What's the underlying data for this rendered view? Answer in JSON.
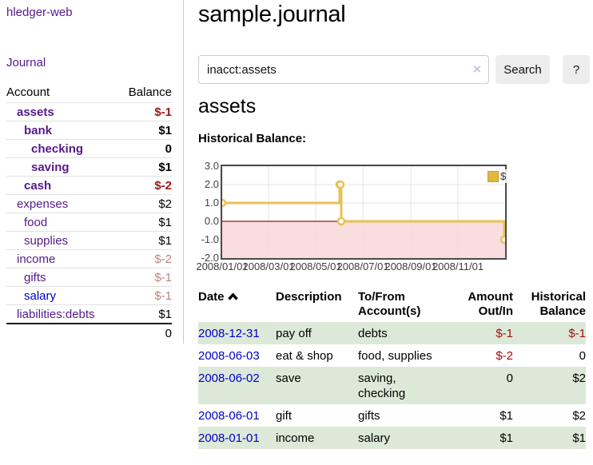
{
  "app": {
    "brand": "hledger-web",
    "nav_journal": "Journal"
  },
  "colors": {
    "link_purple": "#551a8b",
    "link_blue": "#0000cc",
    "negative_strong": "#9d1515",
    "negative_soft": "#c47e7e",
    "negative_main": "#a40f0f",
    "row_stripe_green": "#dde9d8",
    "chart_line_gold": "#e8c155"
  },
  "sidebar": {
    "header": {
      "account": "Account",
      "balance": "Balance"
    },
    "accounts": [
      {
        "name": "assets",
        "balance": "$-1",
        "depth": 0,
        "in_query": true
      },
      {
        "name": "bank",
        "balance": "$1",
        "depth": 1,
        "in_query": true
      },
      {
        "name": "checking",
        "balance": "0",
        "depth": 2,
        "in_query": true
      },
      {
        "name": "saving",
        "balance": "$1",
        "depth": 2,
        "in_query": true
      },
      {
        "name": "cash",
        "balance": "$-2",
        "depth": 1,
        "in_query": true
      },
      {
        "name": "expenses",
        "balance": "$2",
        "depth": 0,
        "in_query": false
      },
      {
        "name": "food",
        "balance": "$1",
        "depth": 1,
        "in_query": false
      },
      {
        "name": "supplies",
        "balance": "$1",
        "depth": 1,
        "in_query": false
      },
      {
        "name": "income",
        "balance": "$-2",
        "depth": 0,
        "in_query": false
      },
      {
        "name": "gifts",
        "balance": "$-1",
        "depth": 1,
        "in_query": false
      },
      {
        "name": "salary",
        "balance": "$-1",
        "depth": 1,
        "in_query": false,
        "unvisited": true
      },
      {
        "name": "liabilities:debts",
        "balance": "$1",
        "depth": 0,
        "in_query": false
      }
    ],
    "total": "0"
  },
  "main": {
    "title": "sample.journal",
    "search": {
      "value": "inacct:assets",
      "clear_glyph": "×",
      "button_label": "Search",
      "help_label": "?"
    },
    "account_heading": "assets",
    "chart_label": "Historical Balance:"
  },
  "chart_data": {
    "type": "line",
    "step": true,
    "title": "Historical Balance:",
    "series": [
      {
        "name": "$",
        "color": "#e8c155",
        "points": [
          [
            "2008-01-01",
            1
          ],
          [
            "2008-06-01",
            2
          ],
          [
            "2008-06-02",
            2
          ],
          [
            "2008-06-03",
            0
          ],
          [
            "2008-12-31",
            -1
          ]
        ]
      }
    ],
    "xlim": [
      "2008-01-01",
      "2009-01-01"
    ],
    "ylim": [
      -2,
      3
    ],
    "yticks": [
      3,
      2,
      1,
      0,
      -1,
      -2
    ],
    "xtick_labels": [
      "2008/01/01",
      "2008/03/01",
      "2008/05/01",
      "2008/07/01",
      "2008/09/01",
      "2008/11/01"
    ],
    "grid": true,
    "legend_position": "top-right",
    "negative_region_fill": "#f7d6d6",
    "zero_line_color": "#a01010"
  },
  "register": {
    "headers": {
      "date": "Date",
      "description": "Description",
      "accounts": "To/From Account(s)",
      "amount": "Amount Out/In",
      "balance": "Historical Balance"
    },
    "rows": [
      {
        "date": "2008-12-31",
        "description": "pay off",
        "accounts": "debts",
        "amount": "$-1",
        "balance": "$-1"
      },
      {
        "date": "2008-06-03",
        "description": "eat & shop",
        "accounts": "food, supplies",
        "amount": "$-2",
        "balance": "0"
      },
      {
        "date": "2008-06-02",
        "description": "save",
        "accounts": "saving, checking",
        "amount": "0",
        "balance": "$2"
      },
      {
        "date": "2008-06-01",
        "description": "gift",
        "accounts": "gifts",
        "amount": "$1",
        "balance": "$2"
      },
      {
        "date": "2008-01-01",
        "description": "income",
        "accounts": "salary",
        "amount": "$1",
        "balance": "$1"
      }
    ]
  }
}
